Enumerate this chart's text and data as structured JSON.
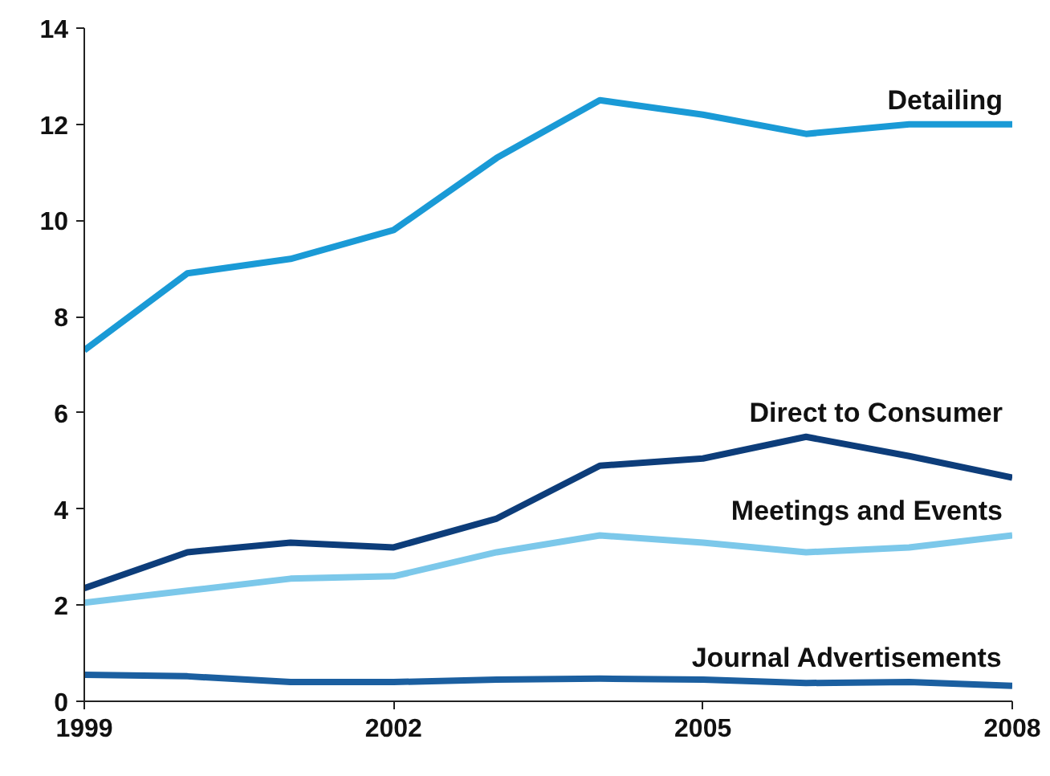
{
  "chart_data": {
    "type": "line",
    "x": [
      1999,
      2000,
      2001,
      2002,
      2003,
      2004,
      2005,
      2006,
      2007,
      2008
    ],
    "xlim": [
      1999,
      2008
    ],
    "xticks": [
      1999,
      2002,
      2005,
      2008
    ],
    "ylim": [
      0,
      14
    ],
    "yticks": [
      0,
      2,
      4,
      6,
      8,
      10,
      12,
      14
    ],
    "grid": false,
    "legend": false,
    "marker": "none",
    "line_style": "solid",
    "series": [
      {
        "name": "Detailing",
        "color": "#1a9ad6",
        "values": [
          7.3,
          8.9,
          9.2,
          9.8,
          11.3,
          12.5,
          12.2,
          11.8,
          12.0,
          12.0
        ]
      },
      {
        "name": "Direct to Consumer",
        "color": "#0d3d7a",
        "values": [
          2.35,
          3.1,
          3.3,
          3.2,
          3.8,
          4.9,
          5.05,
          5.5,
          5.1,
          4.65
        ]
      },
      {
        "name": "Meetings and Events",
        "color": "#7cc8ea",
        "values": [
          2.05,
          2.3,
          2.55,
          2.6,
          3.1,
          3.45,
          3.3,
          3.1,
          3.2,
          3.45
        ]
      },
      {
        "name": "Journal Advertisements",
        "color": "#1b5fa0",
        "values": [
          0.55,
          0.52,
          0.4,
          0.4,
          0.45,
          0.47,
          0.45,
          0.38,
          0.4,
          0.32
        ]
      }
    ]
  }
}
